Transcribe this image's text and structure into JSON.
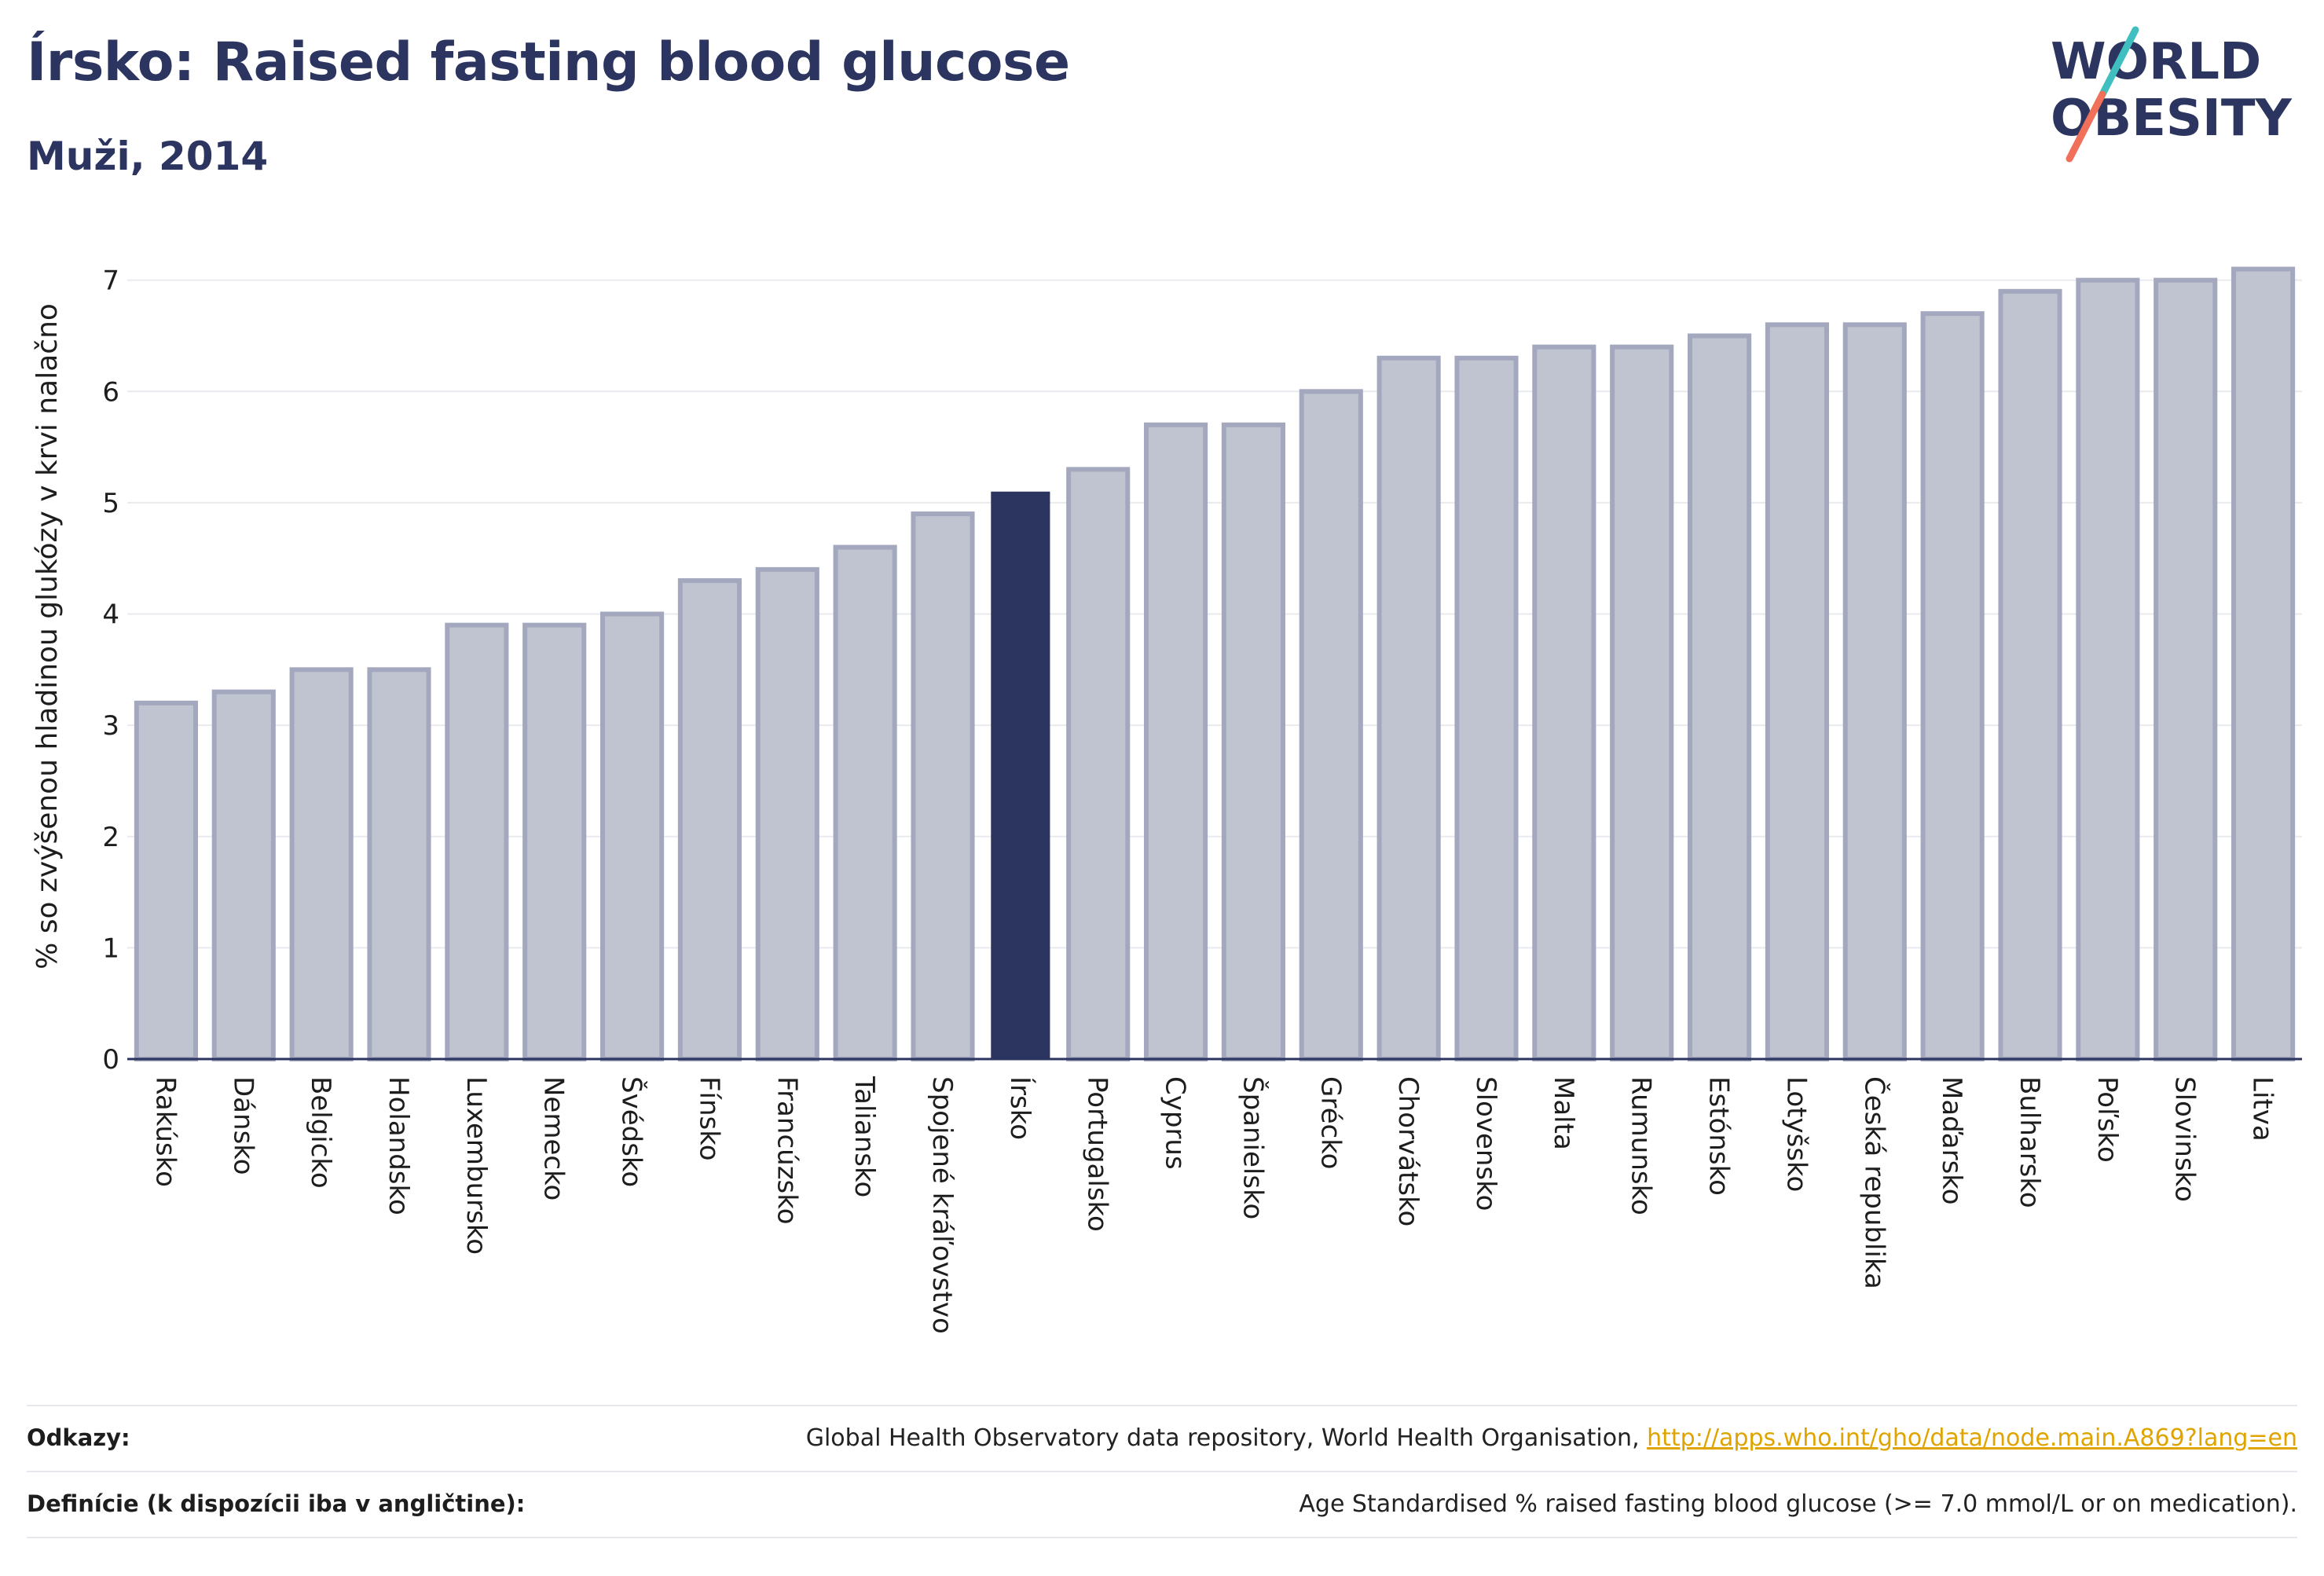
{
  "title": "Írsko: Raised fasting blood glucose",
  "subtitle": "Muži, 2014",
  "logo": {
    "line1": "WORLD",
    "line2": "OBESITY",
    "accent_teal": "#3fbfbf",
    "accent_coral": "#f0705a"
  },
  "colors": {
    "bar_default": "#c0c3d0",
    "bar_default_border": "#a4a8bf",
    "bar_highlight": "#2b3560",
    "axis": "#2b3560",
    "grid": "#e9eaef"
  },
  "chart_data": {
    "type": "bar",
    "ylabel": "% so zvýšenou hladinou glukózy v krvi nalačno",
    "xlabel": "",
    "ylim": [
      0,
      7.4
    ],
    "yticks": [
      0,
      1,
      2,
      3,
      4,
      5,
      6,
      7
    ],
    "grid": true,
    "highlight": "Írsko",
    "categories": [
      "Rakúsko",
      "Dánsko",
      "Belgicko",
      "Holandsko",
      "Luxembursko",
      "Nemecko",
      "Švédsko",
      "Fínsko",
      "Francúzsko",
      "Taliansko",
      "Spojené kráľovstvo",
      "Írsko",
      "Portugalsko",
      "Cyprus",
      "Španielsko",
      "Grécko",
      "Chorvátsko",
      "Slovensko",
      "Malta",
      "Rumunsko",
      "Estónsko",
      "Lotyšsko",
      "Česká republika",
      "Maďarsko",
      "Bulharsko",
      "Poľsko",
      "Slovinsko",
      "Litva"
    ],
    "values": [
      3.2,
      3.3,
      3.5,
      3.5,
      3.9,
      3.9,
      4.0,
      4.3,
      4.4,
      4.6,
      4.9,
      5.1,
      5.3,
      5.7,
      5.7,
      6.0,
      6.3,
      6.3,
      6.4,
      6.4,
      6.5,
      6.6,
      6.6,
      6.7,
      6.9,
      7.0,
      7.0,
      7.1
    ]
  },
  "footer": {
    "references_label": "Odkazy:",
    "references_text": "Global Health Observatory data repository, World Health Organisation, ",
    "references_link": "http://apps.who.int/gho/data/node.main.A869?lang=en",
    "definitions_label": "Definície (k dispozícii iba v angličtine):",
    "definitions_text": "Age Standardised % raised fasting blood glucose (>= 7.0 mmol/L or on medication)."
  }
}
